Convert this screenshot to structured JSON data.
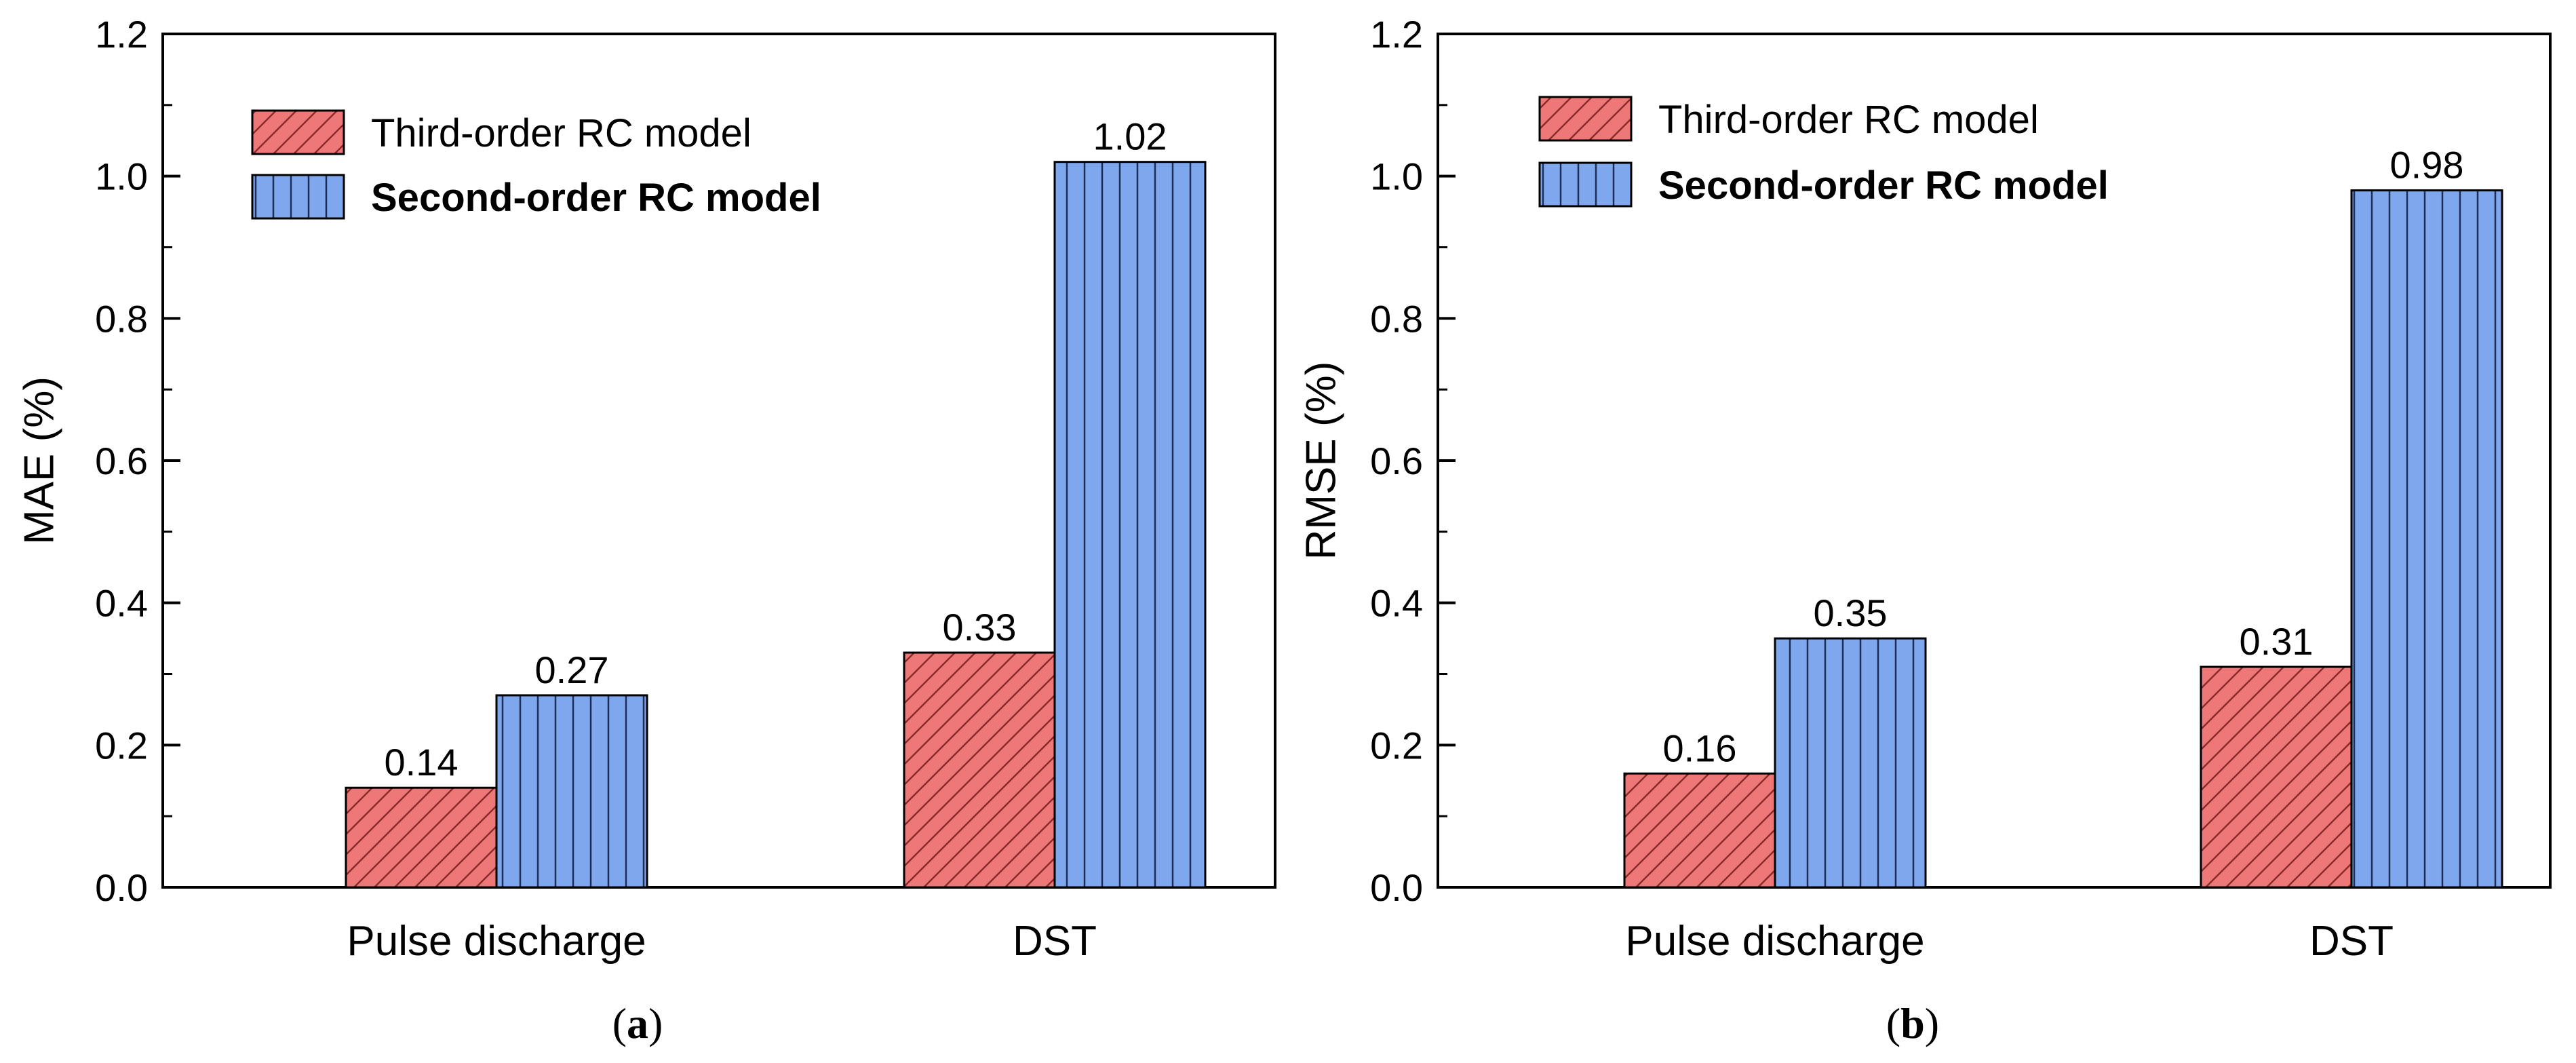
{
  "chart_data": [
    {
      "type": "bar",
      "panel": "a",
      "caption_letter": "a",
      "categories": [
        "Pulse discharge",
        "DST"
      ],
      "series": [
        {
          "name": "Third-order RC model",
          "values": [
            0.14,
            0.33
          ],
          "labels": [
            "0.14",
            "0.33"
          ],
          "color": "#ee7878",
          "pattern": "diagonal-hatch",
          "legend_bold": false
        },
        {
          "name": "Second-order RC model",
          "values": [
            0.27,
            1.02
          ],
          "labels": [
            "0.27",
            "1.02"
          ],
          "color": "#7ea7ee",
          "pattern": "vertical-lines",
          "legend_bold": true
        }
      ],
      "title": "",
      "xlabel": "",
      "ylabel": "MAE (%)",
      "ylim": [
        0,
        1.2
      ],
      "yticks": [
        "0.0",
        "0.2",
        "0.4",
        "0.6",
        "0.8",
        "1.0",
        "1.2"
      ],
      "legend": "top-left",
      "grid": false
    },
    {
      "type": "bar",
      "panel": "b",
      "caption_letter": "b",
      "categories": [
        "Pulse discharge",
        "DST"
      ],
      "series": [
        {
          "name": "Third-order RC model",
          "values": [
            0.16,
            0.31
          ],
          "labels": [
            "0.16",
            "0.31"
          ],
          "color": "#ee7878",
          "pattern": "diagonal-hatch",
          "legend_bold": false
        },
        {
          "name": "Second-order RC model",
          "values": [
            0.35,
            0.98
          ],
          "labels": [
            "0.35",
            "0.98"
          ],
          "color": "#7ea7ee",
          "pattern": "vertical-lines",
          "legend_bold": true
        }
      ],
      "title": "",
      "xlabel": "",
      "ylabel": "RMSE (%)",
      "ylim": [
        0,
        1.2
      ],
      "yticks": [
        "0.0",
        "0.2",
        "0.4",
        "0.6",
        "0.8",
        "1.0",
        "1.2"
      ],
      "legend": "top-left",
      "grid": false
    }
  ]
}
